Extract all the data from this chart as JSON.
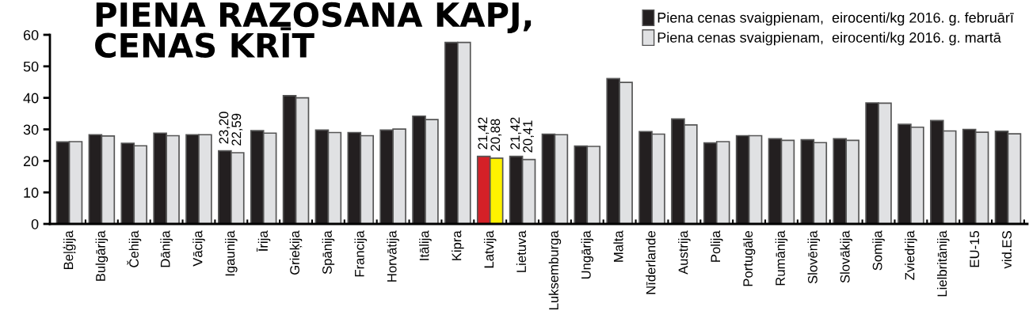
{
  "chart_data": {
    "type": "bar",
    "title": "PIENA RAZOSANA KAPJ,\nCENAS KRĪT",
    "categories": [
      "Beļģija",
      "Bulgārija",
      "Čehija",
      "Dānija",
      "Vācija",
      "Igaunija",
      "Īrija",
      "Grieķija",
      "Spānija",
      "Francija",
      "Horvātija",
      "Itālija",
      "Kipra",
      "Latvija",
      "Lietuva",
      "Luksemburga",
      "Ungārija",
      "Malta",
      "Nīderlande",
      "Austrija",
      "Polija",
      "Portugāle",
      "Rumānija",
      "Slovēnija",
      "Slovākija",
      "Somija",
      "Zviedrija",
      "Lielbritānija",
      "EU-15",
      "vid.ES"
    ],
    "series": [
      {
        "name": "Piena cenas svaigpienam,  eirocenti/kg 2016. g. februārī",
        "color": "#231f20",
        "colors": [
          "#231f20",
          "#231f20",
          "#231f20",
          "#231f20",
          "#231f20",
          "#231f20",
          "#231f20",
          "#231f20",
          "#231f20",
          "#231f20",
          "#231f20",
          "#231f20",
          "#231f20",
          "#d42027",
          "#231f20",
          "#231f20",
          "#231f20",
          "#231f20",
          "#231f20",
          "#231f20",
          "#231f20",
          "#231f20",
          "#231f20",
          "#231f20",
          "#231f20",
          "#231f20",
          "#231f20",
          "#231f20",
          "#231f20",
          "#231f20"
        ],
        "values": [
          26.0,
          28.3,
          25.6,
          28.8,
          28.3,
          23.2,
          29.6,
          40.7,
          29.8,
          29.0,
          29.8,
          34.2,
          57.6,
          21.42,
          21.42,
          28.5,
          24.7,
          46.1,
          29.3,
          33.3,
          25.7,
          28.0,
          27.0,
          26.7,
          27.0,
          38.4,
          31.6,
          32.8,
          30.0,
          29.4
        ],
        "value_labels": [
          null,
          null,
          null,
          null,
          null,
          "23,20",
          null,
          null,
          null,
          null,
          null,
          null,
          null,
          "21,42",
          "21,42",
          null,
          null,
          null,
          null,
          null,
          null,
          null,
          null,
          null,
          null,
          null,
          null,
          null,
          null,
          null
        ]
      },
      {
        "name": "Piena cenas svaigpienam,  eirocenti/kg 2016. g. martā",
        "color": "#e0e1e3",
        "colors": [
          "#e0e1e3",
          "#e0e1e3",
          "#e0e1e3",
          "#e0e1e3",
          "#e0e1e3",
          "#e0e1e3",
          "#e0e1e3",
          "#e0e1e3",
          "#e0e1e3",
          "#e0e1e3",
          "#e0e1e3",
          "#e0e1e3",
          "#e0e1e3",
          "#fff200",
          "#e0e1e3",
          "#e0e1e3",
          "#e0e1e3",
          "#e0e1e3",
          "#e0e1e3",
          "#e0e1e3",
          "#e0e1e3",
          "#e0e1e3",
          "#e0e1e3",
          "#e0e1e3",
          "#e0e1e3",
          "#e0e1e3",
          "#e0e1e3",
          "#e0e1e3",
          "#e0e1e3",
          "#e0e1e3"
        ],
        "values": [
          26.1,
          27.9,
          24.8,
          28.0,
          28.3,
          22.59,
          28.8,
          40.0,
          29.0,
          28.0,
          30.1,
          33.1,
          57.6,
          20.88,
          20.41,
          28.3,
          24.6,
          44.9,
          28.5,
          31.4,
          26.1,
          28.0,
          26.5,
          25.8,
          26.5,
          38.3,
          30.7,
          29.5,
          29.1,
          28.6
        ],
        "value_labels": [
          null,
          null,
          null,
          null,
          null,
          "22,59",
          null,
          null,
          null,
          null,
          null,
          null,
          null,
          "20,88",
          "20,41",
          null,
          null,
          null,
          null,
          null,
          null,
          null,
          null,
          null,
          null,
          null,
          null,
          null,
          null,
          null
        ]
      }
    ],
    "ylim": [
      0,
      60
    ],
    "yticks": [
      0,
      10,
      20,
      30,
      40,
      50,
      60
    ],
    "grid": false,
    "legend": "top right"
  }
}
